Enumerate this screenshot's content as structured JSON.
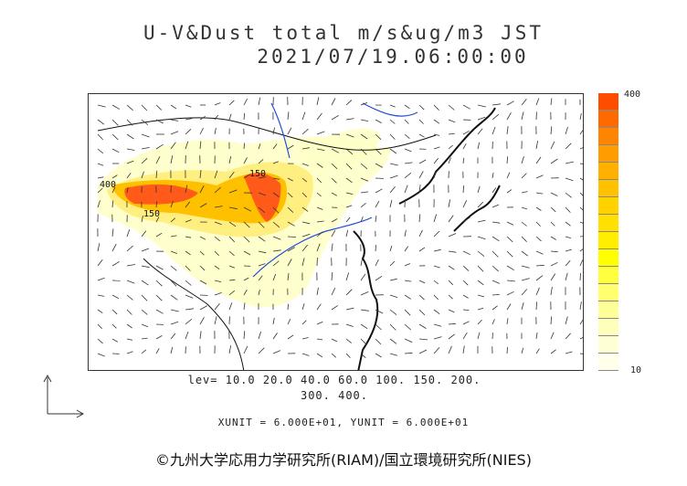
{
  "title": "U-V&Dust total m/s&ug/m3 JST",
  "datetime": "2021/07/19.06:00:00",
  "legend": {
    "max_label": "400",
    "min_label": "10",
    "colors": [
      "#ff4d00",
      "#ff6a00",
      "#ff8400",
      "#ff9c00",
      "#ffb000",
      "#ffc200",
      "#ffd200",
      "#ffe000",
      "#ffee00",
      "#ffff00",
      "#ffff40",
      "#ffff70",
      "#ffff9a",
      "#ffffbc",
      "#ffffd6",
      "#ffffea"
    ]
  },
  "levels_line1": "lev= 10.0 20.0 40.0 60.0 100. 150. 200.",
  "levels_line2": "300. 400.",
  "units": "XUNIT = 6.000E+01, YUNIT = 6.000E+01",
  "credit": "©九州大学応用力学研究所(RIAM)/国立環境研究所(NIES)",
  "contour_labels": [
    "400",
    "150",
    "150"
  ]
}
